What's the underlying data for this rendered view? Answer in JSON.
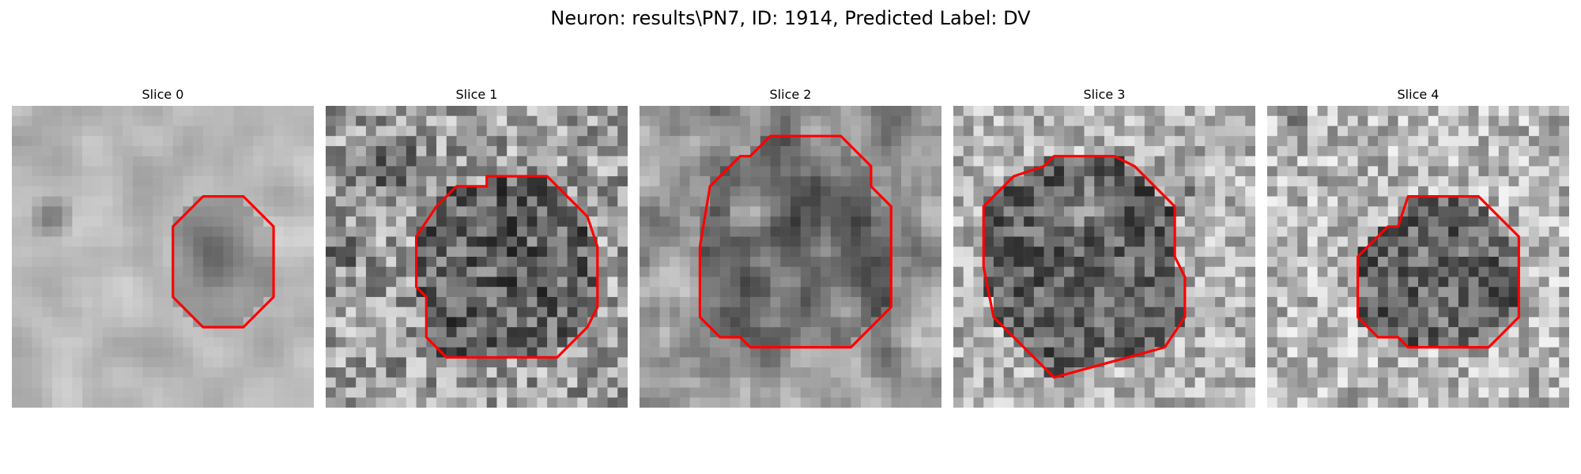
{
  "figure": {
    "title": "Neuron: results\\PN7, ID: 1914, Predicted Label: DV"
  },
  "panels": [
    {
      "title": "Slice 0",
      "contour": [
        [
          19,
          9
        ],
        [
          23,
          9
        ],
        [
          26,
          12
        ],
        [
          26,
          19
        ],
        [
          23,
          22
        ],
        [
          19,
          22
        ],
        [
          16,
          19
        ],
        [
          16,
          12
        ]
      ]
    },
    {
      "title": "Slice 1",
      "contour": [
        [
          16,
          8
        ],
        [
          16,
          7
        ],
        [
          22,
          7
        ],
        [
          24,
          9
        ],
        [
          26,
          11
        ],
        [
          27,
          14
        ],
        [
          27,
          20
        ],
        [
          26,
          22
        ],
        [
          24,
          24
        ],
        [
          23,
          25
        ],
        [
          12,
          25
        ],
        [
          10,
          23
        ],
        [
          10,
          19
        ],
        [
          9,
          18
        ],
        [
          9,
          13
        ],
        [
          11,
          10
        ],
        [
          13,
          8
        ]
      ]
    },
    {
      "title": "Slice 2",
      "contour": [
        [
          13,
          3
        ],
        [
          20,
          3
        ],
        [
          23,
          6
        ],
        [
          23,
          8
        ],
        [
          25,
          10
        ],
        [
          25,
          20
        ],
        [
          23,
          22
        ],
        [
          21,
          24
        ],
        [
          11,
          24
        ],
        [
          10,
          23
        ],
        [
          8,
          23
        ],
        [
          6,
          21
        ],
        [
          6,
          14
        ],
        [
          7,
          8
        ],
        [
          10,
          5
        ],
        [
          11,
          5
        ]
      ]
    },
    {
      "title": "Slice 3",
      "contour": [
        [
          10,
          5
        ],
        [
          16,
          5
        ],
        [
          18,
          6
        ],
        [
          19,
          7
        ],
        [
          22,
          10
        ],
        [
          22,
          15
        ],
        [
          23,
          17
        ],
        [
          23,
          21
        ],
        [
          21,
          24
        ],
        [
          10,
          27
        ],
        [
          4,
          21
        ],
        [
          3,
          16
        ],
        [
          3,
          10
        ],
        [
          6,
          7
        ],
        [
          9,
          6
        ]
      ]
    },
    {
      "title": "Slice 4",
      "contour": [
        [
          14,
          9
        ],
        [
          21,
          9
        ],
        [
          22,
          10
        ],
        [
          25,
          13
        ],
        [
          25,
          21
        ],
        [
          22,
          24
        ],
        [
          14,
          24
        ],
        [
          13,
          23
        ],
        [
          11,
          23
        ],
        [
          9,
          21
        ],
        [
          9,
          15
        ],
        [
          12,
          12
        ],
        [
          13,
          12
        ]
      ]
    }
  ]
}
